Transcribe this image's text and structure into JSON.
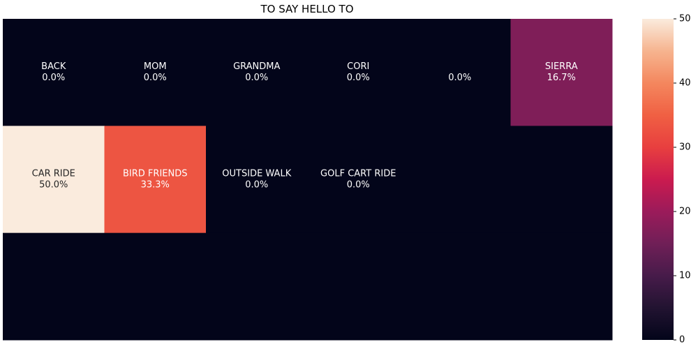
{
  "chart_data": {
    "type": "heatmap",
    "title": "TO SAY HELLO TO",
    "rows": 3,
    "cols": 6,
    "cells": [
      [
        {
          "label": "BACK",
          "pct": "0.0%",
          "value": 0
        },
        {
          "label": "MOM",
          "pct": "0.0%",
          "value": 0
        },
        {
          "label": "GRANDMA",
          "pct": "0.0%",
          "value": 0
        },
        {
          "label": "CORI",
          "pct": "0.0%",
          "value": 0
        },
        {
          "label": "",
          "pct": "0.0%",
          "value": 0
        },
        {
          "label": "SIERRA",
          "pct": "16.7%",
          "value": 16.7
        }
      ],
      [
        {
          "label": "CAR RIDE",
          "pct": "50.0%",
          "value": 50.0
        },
        {
          "label": "BIRD FRIENDS",
          "pct": "33.3%",
          "value": 33.3
        },
        {
          "label": "OUTSIDE WALK",
          "pct": "0.0%",
          "value": 0
        },
        {
          "label": "GOLF CART RIDE",
          "pct": "0.0%",
          "value": 0
        },
        {
          "label": "",
          "pct": "",
          "value": 0
        },
        {
          "label": "",
          "pct": "",
          "value": 0
        }
      ],
      [
        {
          "label": "",
          "pct": "",
          "value": 0
        },
        {
          "label": "",
          "pct": "",
          "value": 0
        },
        {
          "label": "",
          "pct": "",
          "value": 0
        },
        {
          "label": "",
          "pct": "",
          "value": 0
        },
        {
          "label": "",
          "pct": "",
          "value": 0
        },
        {
          "label": "",
          "pct": "",
          "value": 0
        }
      ]
    ],
    "colorbar": {
      "range": [
        0,
        50
      ],
      "ticks": [
        "0",
        "10",
        "20",
        "30",
        "40",
        "50"
      ],
      "colormap": "rocket"
    },
    "grid": false,
    "legend": "colorbar-right"
  }
}
